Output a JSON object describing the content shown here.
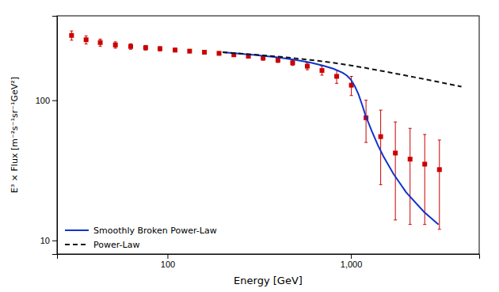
{
  "chart_data": {
    "type": "scatter",
    "xlabel": "Energy [GeV]",
    "ylabel": "E³ × Flux [m⁻²s⁻¹sr⁻¹GeV²]",
    "log": true,
    "xlim": [
      25,
      5000
    ],
    "ylim": [
      8,
      400
    ],
    "xticks": [
      100,
      {
        "value": 1000,
        "label": "1,000"
      }
    ],
    "yticks": [
      10,
      100
    ],
    "grid": false,
    "legend": "lower left",
    "series": [
      {
        "type": "scatter",
        "color": "#cc0000",
        "marker": "square",
        "x": [
          30,
          36,
          43,
          52,
          63,
          76,
          91,
          110,
          132,
          159,
          191,
          230,
          276,
          332,
          400,
          481,
          578,
          695,
          836,
          1005,
          1208,
          1452,
          1746,
          2100,
          2524,
          3035
        ],
        "values": [
          290,
          270,
          258,
          248,
          242,
          237,
          233,
          228,
          224,
          220,
          216,
          211,
          206,
          200,
          193,
          185,
          175,
          163,
          148,
          128,
          75,
          55,
          42,
          38,
          35,
          32
        ],
        "yerr_lo": [
          22,
          18,
          15,
          13,
          11,
          9,
          8,
          7,
          6,
          6,
          6,
          6,
          6,
          7,
          7,
          8,
          10,
          12,
          16,
          20,
          25,
          30,
          28,
          25,
          22,
          20
        ],
        "yerr_hi": [
          22,
          18,
          15,
          13,
          11,
          9,
          8,
          7,
          6,
          6,
          6,
          6,
          6,
          7,
          7,
          8,
          10,
          12,
          16,
          20,
          25,
          30,
          28,
          25,
          22,
          20
        ]
      },
      {
        "name": "Smoothly Broken Power-Law",
        "type": "line",
        "color": "#1133cc",
        "line_style": "solid",
        "x": [
          200,
          300,
          400,
          500,
          600,
          700,
          800,
          900,
          950,
          1000,
          1050,
          1100,
          1150,
          1200,
          1300,
          1400,
          1500,
          1700,
          2000,
          2500,
          3000
        ],
        "values": [
          220,
          210,
          202,
          194,
          186,
          177,
          168,
          157,
          150,
          140,
          126,
          110,
          93,
          78,
          60,
          48,
          40,
          30,
          22,
          16,
          13
        ]
      },
      {
        "name": "Power-Law",
        "type": "line",
        "color": "#111111",
        "line_style": "dashed",
        "x": [
          200,
          400,
          600,
          800,
          1000,
          1200,
          1500,
          2000,
          3000,
          4000
        ],
        "values": [
          220,
          205,
          194,
          185,
          177,
          170,
          161,
          150,
          135,
          125
        ]
      }
    ]
  }
}
